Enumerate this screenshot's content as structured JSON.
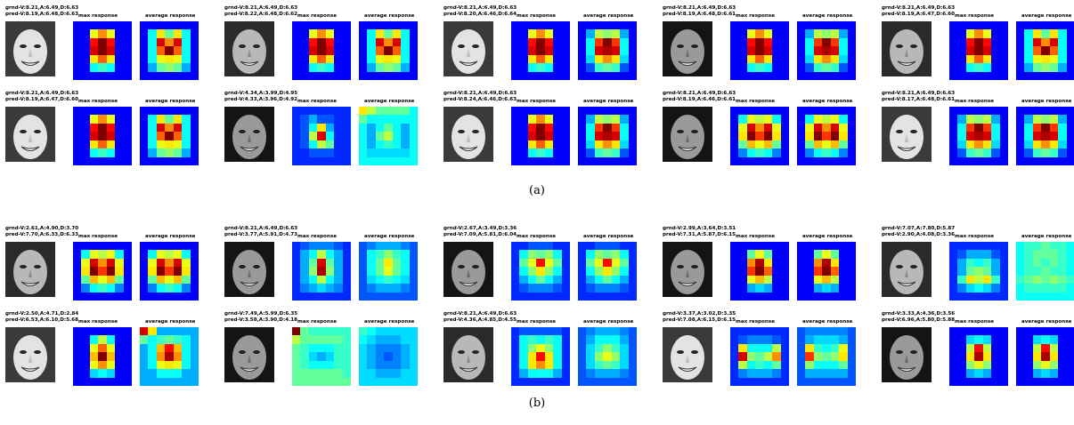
{
  "labels": {
    "max": "max response",
    "avg": "average response"
  },
  "captions": [
    "(a)",
    "(b)"
  ],
  "panels": [
    {
      "rows": [
        [
          {
            "gt": "grnd-V:8.21,A:6.49,D:6.63",
            "pred": "pred-V:8.19,A:6.48,D:6.63",
            "tone": "light",
            "max": "f1",
            "avg": "f2"
          },
          {
            "gt": "grnd-V:8.21,A:6.49,D:6.63",
            "pred": "pred-V:8.22,A:6.48,D:6.62",
            "tone": "mid",
            "max": "f1",
            "avg": "f2"
          },
          {
            "gt": "grnd-V:8.21,A:6.49,D:6.63",
            "pred": "pred-V:8.20,A:6.46,D:6.64",
            "tone": "light",
            "max": "f1",
            "avg": "f3"
          },
          {
            "gt": "grnd-V:8.21,A:6.49,D:6.63",
            "pred": "pred-V:8.19,A:6.48,D:6.61",
            "tone": "dark",
            "max": "f1",
            "avg": "f3"
          },
          {
            "gt": "grnd-V:8.21,A:6.49,D:6.63",
            "pred": "pred-V:8.19,A:6.47,D:6.60",
            "tone": "mid",
            "max": "f1",
            "avg": "f2"
          }
        ],
        [
          {
            "gt": "grnd-V:8.21,A:6.49,D:6.63",
            "pred": "pred-V:8.19,A:6.47,D:6.60",
            "tone": "light",
            "max": "f1",
            "avg": "f2"
          },
          {
            "gt": "grnd-V:4.34,A:3.99,D:4.95",
            "pred": "pred-V:4.33,A:3.96,D:4.92",
            "tone": "dark",
            "max": "f4",
            "avg": "f5"
          },
          {
            "gt": "grnd-V:8.21,A:6.49,D:6.63",
            "pred": "pred-V:8.24,A:6.46,D:6.63",
            "tone": "light",
            "max": "f1",
            "avg": "f3"
          },
          {
            "gt": "grnd-V:8.21,A:6.49,D:6.63",
            "pred": "pred-V:8.19,A:6.46,D:6.61",
            "tone": "dark",
            "max": "f6",
            "avg": "f6"
          },
          {
            "gt": "grnd-V:8.21,A:6.49,D:6.63",
            "pred": "pred-V:8.17,A:6.48,D:6.61",
            "tone": "light",
            "max": "f3",
            "avg": "f3"
          }
        ]
      ]
    },
    {
      "rows": [
        [
          {
            "gt": "grnd-V:2.61,A:4.90,D:3.70",
            "pred": "pred-V:7.70,A:6.33,D:6.33",
            "tone": "mid",
            "max": "f6",
            "avg": "f6"
          },
          {
            "gt": "grnd-V:8.21,A:6.49,D:6.63",
            "pred": "pred-V:3.77,A:5.91,D:4.73",
            "tone": "dark",
            "max": "f7",
            "avg": "f8"
          },
          {
            "gt": "grnd-V:2.67,A:3.49,D:3.36",
            "pred": "pred-V:7.09,A:5.81,D:6.04",
            "tone": "dark",
            "max": "f9",
            "avg": "f9"
          },
          {
            "gt": "grnd-V:2.99,A:3.64,D:3.51",
            "pred": "pred-V:7.31,A:5.87,D:6.15",
            "tone": "dark",
            "max": "f10",
            "avg": "f10"
          },
          {
            "gt": "grnd-V:7.07,A:7.80,D:5.87",
            "pred": "pred-V:2.90,A:4.08,D:3.36",
            "tone": "mid",
            "max": "f11",
            "avg": "f12"
          }
        ],
        [
          {
            "gt": "grnd-V:2.50,A:4.71,D:2.84",
            "pred": "pred-V:6.53,A:6.10,D:5.68",
            "tone": "light",
            "max": "f13",
            "avg": "f14"
          },
          {
            "gt": "grnd-V:7.49,A:5.99,D:6.35",
            "pred": "pred-V:3.58,A:3.90,D:4.18",
            "tone": "dark",
            "max": "f15",
            "avg": "f16"
          },
          {
            "gt": "grnd-V:8.21,A:6.49,D:6.63",
            "pred": "pred-V:4.36,A:4.85,D:4.55",
            "tone": "mid",
            "max": "f17",
            "avg": "f18"
          },
          {
            "gt": "grnd-V:3.37,A:3.02,D:3.35",
            "pred": "pred-V:7.08,A:6.15,D:6.15",
            "tone": "light",
            "max": "f19",
            "avg": "f20"
          },
          {
            "gt": "grnd-V:3.33,A:4.36,D:3.56",
            "pred": "pred-V:6.96,A:5.80,D:5.88",
            "tone": "dark",
            "max": "f21",
            "avg": "f21"
          }
        ]
      ]
    }
  ]
}
